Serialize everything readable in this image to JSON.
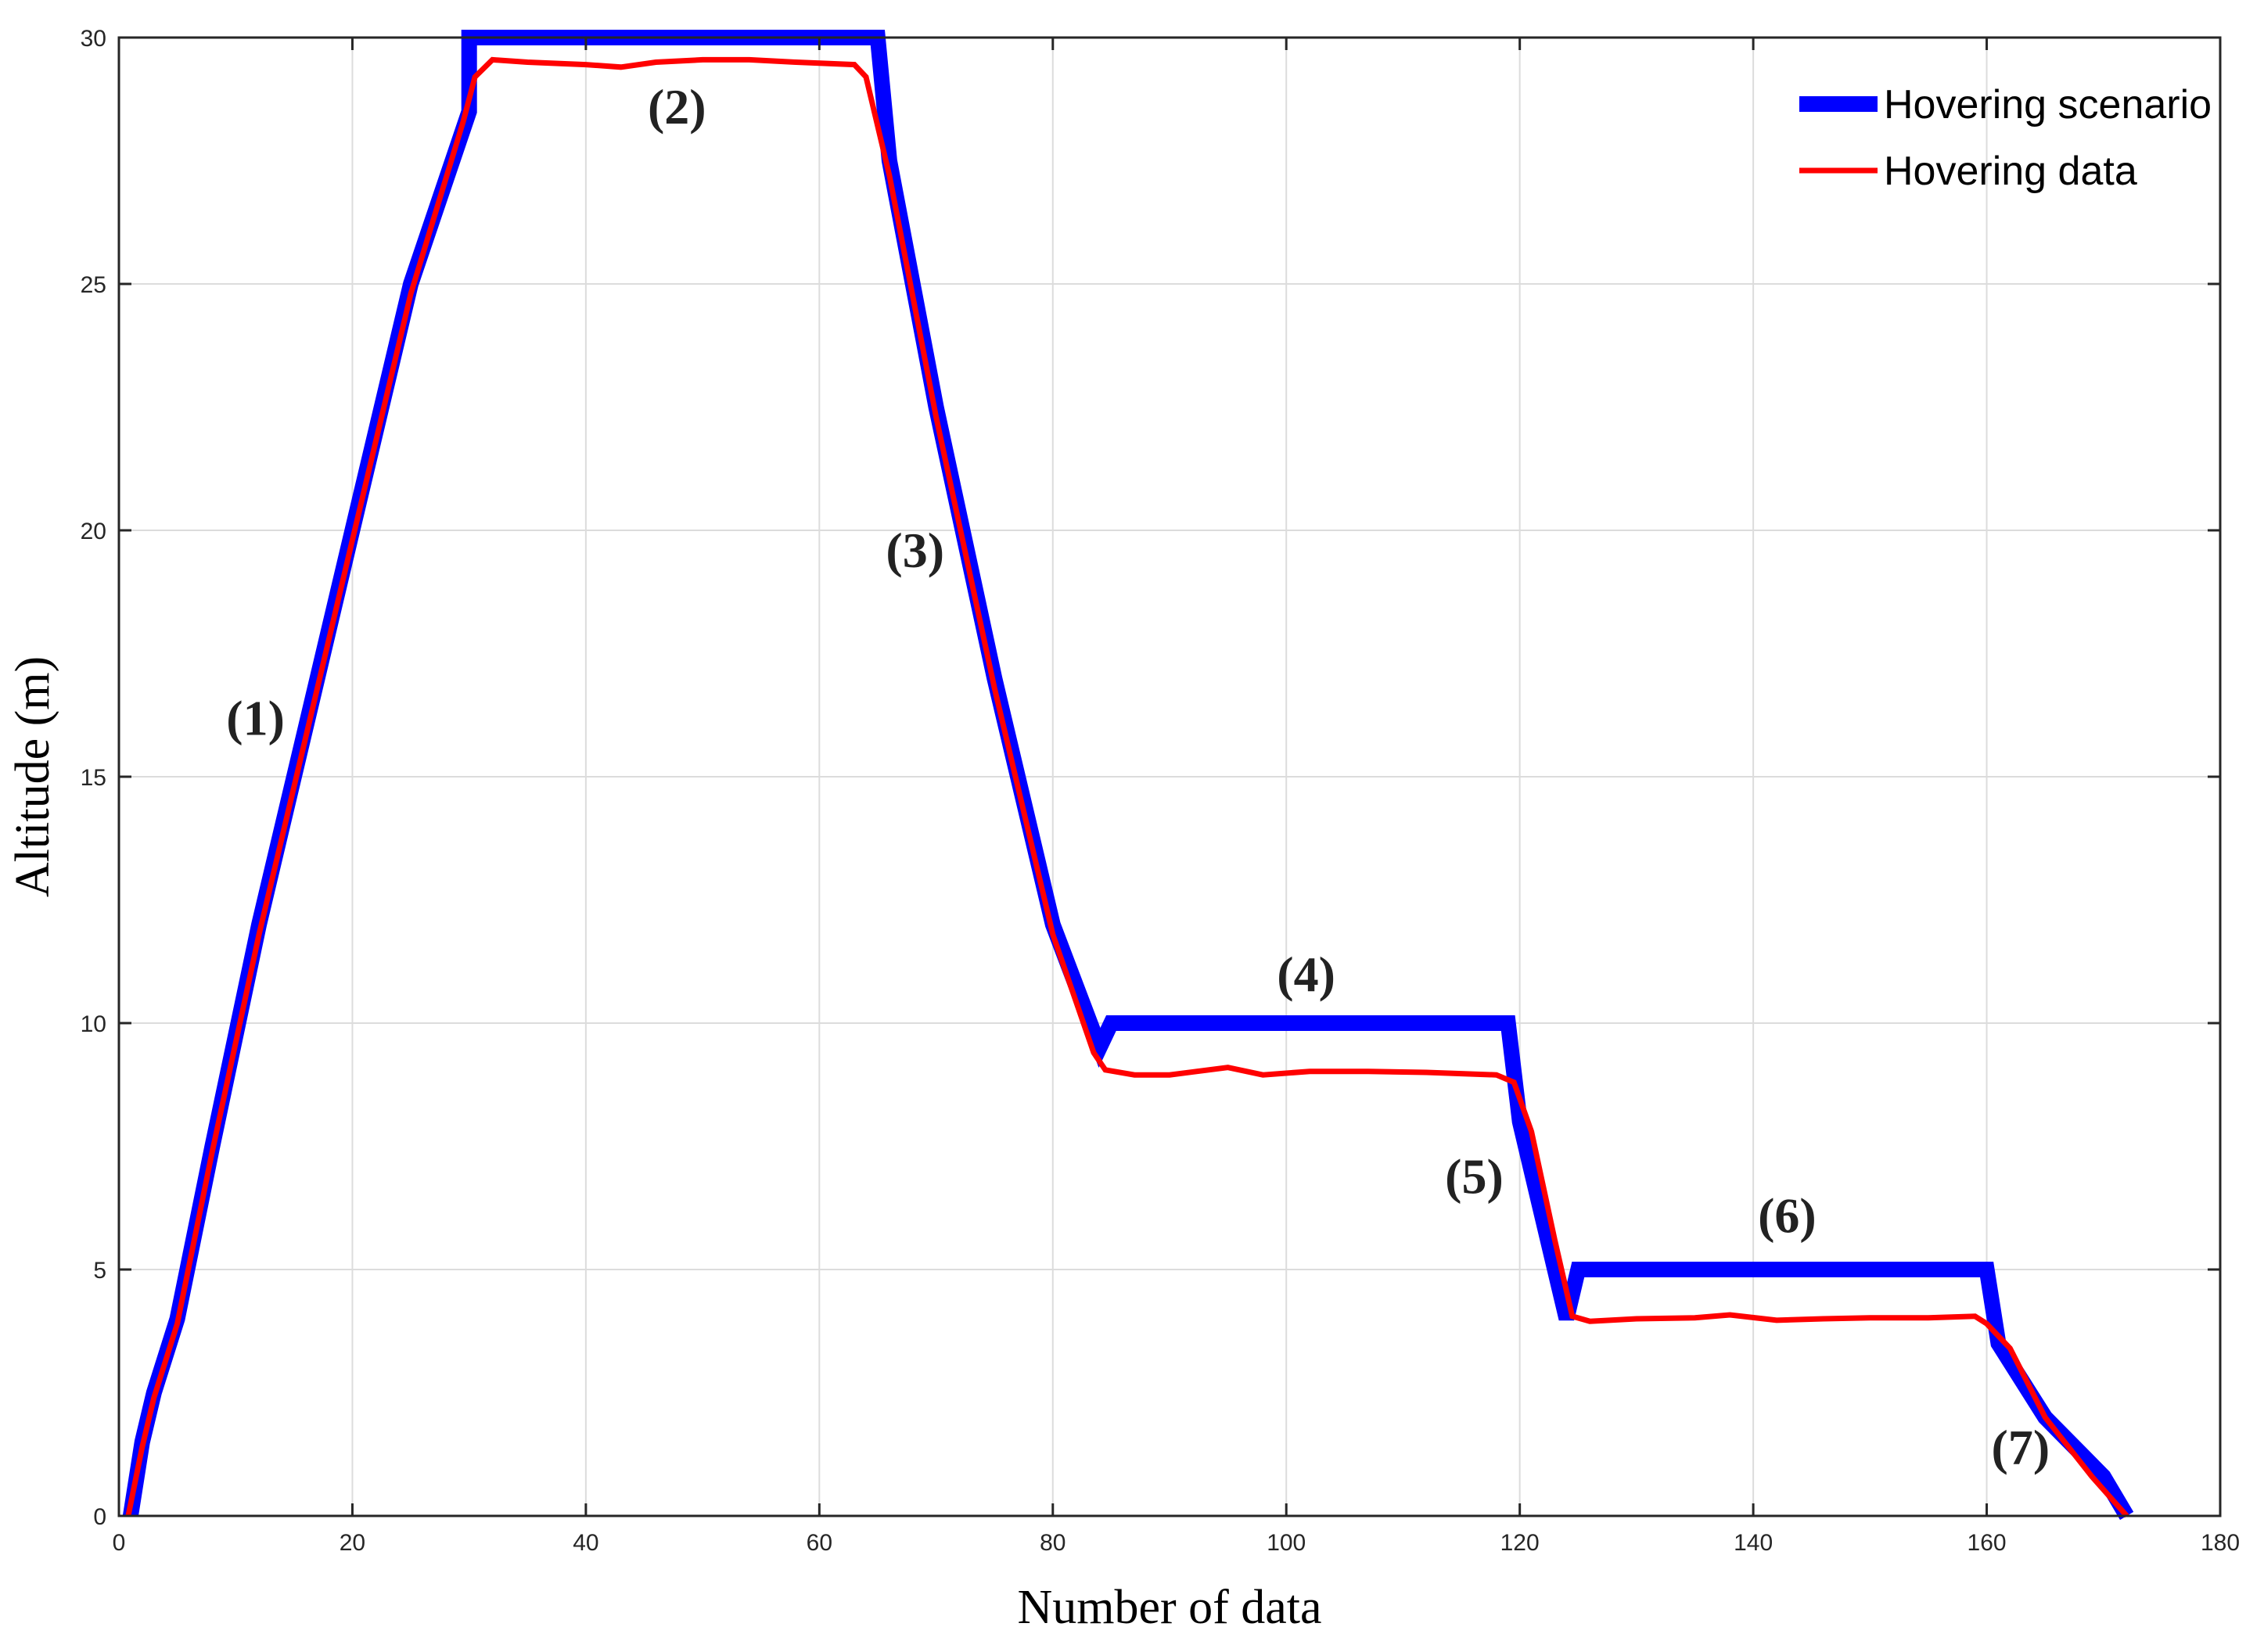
{
  "chart_data": {
    "type": "line",
    "xlabel": "Number of data",
    "ylabel": "Altitude (m)",
    "xlim": [
      0,
      180
    ],
    "ylim": [
      0,
      30
    ],
    "xticks": [
      "0",
      "20",
      "40",
      "60",
      "80",
      "100",
      "120",
      "140",
      "160",
      "180"
    ],
    "yticks": [
      "0",
      "5",
      "10",
      "15",
      "20",
      "25",
      "30"
    ],
    "grid": true,
    "legend_position": "top-right",
    "series": [
      {
        "name": "Hovering scenario",
        "color": "#0000ff",
        "x": [
          1,
          2,
          3,
          5,
          8,
          12,
          16,
          20,
          25,
          30,
          30,
          65,
          66,
          70,
          75,
          80,
          84,
          85,
          119,
          120,
          122,
          124,
          125,
          160,
          161,
          165,
          170,
          172
        ],
        "y": [
          0,
          1.5,
          2.5,
          4,
          7.5,
          12,
          16,
          20,
          25,
          28.5,
          30,
          30,
          27.5,
          22.5,
          17,
          12,
          9.5,
          10,
          10,
          8,
          6,
          4,
          5,
          5,
          3.5,
          2,
          0.8,
          0
        ]
      },
      {
        "name": "Hovering data",
        "color": "#ff0000",
        "x": [
          0.8,
          2,
          3,
          5,
          8,
          12,
          16,
          20,
          25,
          29.5,
          30.5,
          32,
          35,
          40,
          43,
          46,
          50,
          54,
          58,
          63,
          64,
          66,
          70,
          75,
          80,
          83.5,
          84.5,
          87,
          90,
          95,
          98,
          102,
          107,
          112,
          118,
          119.5,
          121,
          123,
          124.5,
          126,
          130,
          135,
          138,
          142,
          146,
          150,
          155,
          159,
          160,
          162,
          165,
          169,
          172
        ],
        "y": [
          0,
          1.4,
          2.4,
          3.9,
          7.4,
          11.8,
          15.8,
          19.8,
          24.8,
          28.3,
          29.2,
          29.55,
          29.5,
          29.45,
          29.4,
          29.5,
          29.55,
          29.55,
          29.5,
          29.45,
          29.2,
          27.2,
          22.3,
          16.8,
          11.8,
          9.4,
          9.05,
          8.95,
          8.95,
          9.1,
          8.95,
          9.02,
          9.02,
          9.0,
          8.95,
          8.8,
          7.8,
          5.6,
          4.05,
          3.95,
          4.0,
          4.02,
          4.08,
          3.97,
          4.0,
          4.02,
          4.02,
          4.05,
          3.9,
          3.4,
          2.0,
          0.8,
          0
        ]
      }
    ],
    "annotations": [
      {
        "text": "(1)",
        "x": 11.7,
        "y": 16.2
      },
      {
        "text": "(2)",
        "x": 47.8,
        "y": 28.6
      },
      {
        "text": "(3)",
        "x": 68.2,
        "y": 19.6
      },
      {
        "text": "(4)",
        "x": 101.7,
        "y": 11.0
      },
      {
        "text": "(5)",
        "x": 116.1,
        "y": 6.9
      },
      {
        "text": "(6)",
        "x": 142.9,
        "y": 6.1
      },
      {
        "text": "(7)",
        "x": 162.9,
        "y": 1.4
      }
    ]
  }
}
